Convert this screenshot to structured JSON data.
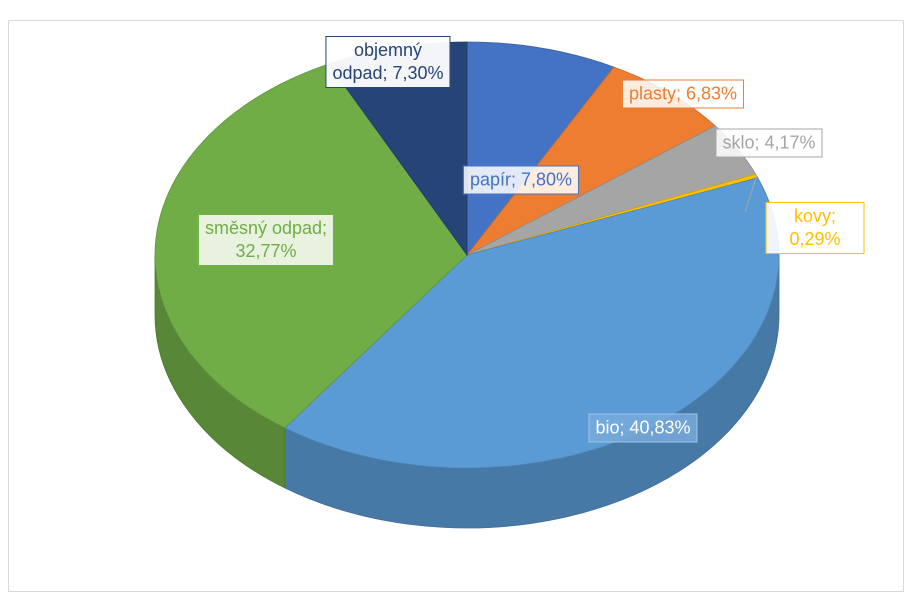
{
  "chart_data": {
    "type": "pie",
    "categories": [
      "papír",
      "plasty",
      "sklo",
      "kovy",
      "bio",
      "směsný odpad",
      "objemný odpad"
    ],
    "values": [
      7.8,
      6.83,
      4.17,
      0.29,
      40.83,
      32.77,
      7.3
    ],
    "value_labels": [
      "papír; 7,80%",
      "plasty; 6,83%",
      "sklo; 4,17%",
      "kovy; 0,29%",
      "bio; 40,83%",
      "směsný odpad;\n32,77%",
      "objemný\nodpad; 7,30%"
    ],
    "colors": [
      "#4472c4",
      "#ed7d31",
      "#a5a5a5",
      "#ffc000",
      "#5b9bd5",
      "#70ad47",
      "#264478"
    ]
  }
}
